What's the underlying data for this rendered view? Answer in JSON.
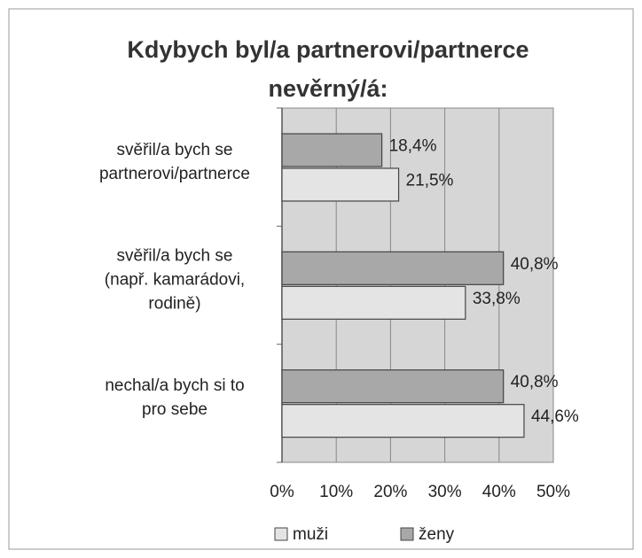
{
  "chart_data": {
    "type": "bar",
    "orientation": "horizontal",
    "title": "Kdybych byl/a partnerovi/partnerce\nnevěrný/á:",
    "categories": [
      "svěřil/a bych se\npartnerovi/partnerce",
      "svěřil/a bych se\n(např. kamarádovi,\nrodině)",
      "nechal/a bych si to\npro sebe"
    ],
    "series": [
      {
        "name": "muži",
        "color": "#e4e4e4",
        "values": [
          21.5,
          33.8,
          44.6
        ],
        "value_labels": [
          "21,5%",
          "33,8%",
          "44,6%"
        ]
      },
      {
        "name": "ženy",
        "color": "#a8a8a8",
        "values": [
          18.4,
          40.8,
          40.8
        ],
        "value_labels": [
          "18,4%",
          "40,8%",
          "40,8%"
        ]
      }
    ],
    "xlim": [
      0,
      50
    ],
    "xticks": [
      {
        "value": 0,
        "label": "0%"
      },
      {
        "value": 10,
        "label": "10%"
      },
      {
        "value": 20,
        "label": "20%"
      },
      {
        "value": 30,
        "label": "30%"
      },
      {
        "value": 40,
        "label": "40%"
      },
      {
        "value": 50,
        "label": "50%"
      }
    ],
    "grid": true,
    "legend": "bottom"
  }
}
